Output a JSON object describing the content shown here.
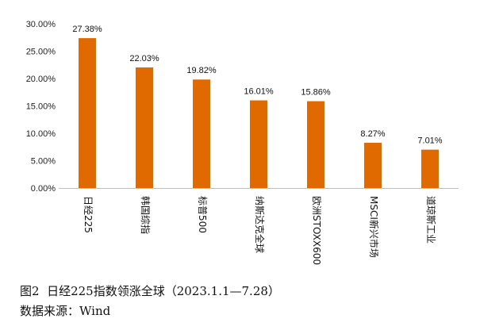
{
  "caption": {
    "figure": "图2  日经225指数领涨全球（2023.1.1—7.28）",
    "source": "数据来源：Wind"
  },
  "chart_data": {
    "type": "bar",
    "categories": [
      "日经225",
      "韩国综指",
      "标普500",
      "纳斯达克全球",
      "欧洲STOXX600",
      "MSCI新兴市场",
      "道琼斯工业"
    ],
    "values": [
      27.38,
      22.03,
      19.82,
      16.01,
      15.86,
      8.27,
      7.01
    ],
    "data_labels": [
      "27.38%",
      "22.03%",
      "19.82%",
      "16.01%",
      "15.86%",
      "8.27%",
      "7.01%"
    ],
    "y_ticks": [
      0,
      5,
      10,
      15,
      20,
      25,
      30
    ],
    "y_tick_labels": [
      "0.00%",
      "5.00%",
      "10.00%",
      "15.00%",
      "20.00%",
      "25.00%",
      "30.00%"
    ],
    "ylim": [
      0,
      30
    ],
    "grid": false,
    "bar_color": "#E06A00",
    "title": "",
    "xlabel": "",
    "ylabel": ""
  }
}
